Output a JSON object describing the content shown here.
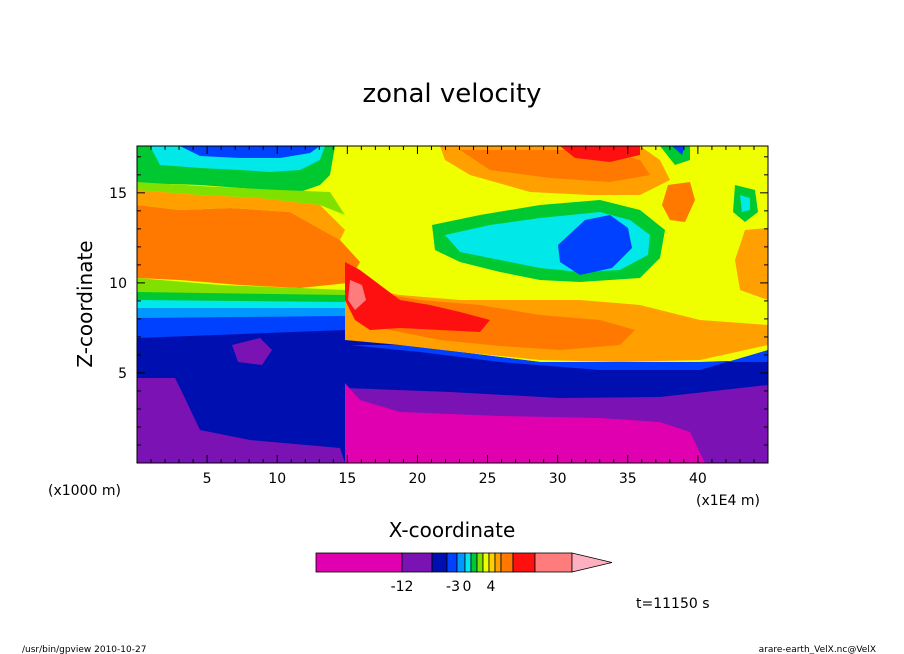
{
  "chart_data": {
    "type": "heatmap",
    "title": "zonal velocity",
    "xlabel": "X-coordinate",
    "ylabel": "Z-coordinate",
    "x_unit_left": "(x1000 m)",
    "x_unit_right": "(x1E4 m)",
    "xlim": [
      0,
      45
    ],
    "ylim": [
      0,
      17.6
    ],
    "x_ticks": [
      5,
      10,
      15,
      20,
      25,
      30,
      35,
      40
    ],
    "y_ticks": [
      5,
      10,
      15
    ],
    "time_label": "t=11150 s",
    "footer_left": "/usr/bin/gpview  2010-10-27",
    "footer_right": "arare-earth_VelX.nc@VelX",
    "colorbar": {
      "colors": [
        "#e000b0",
        "#7a12b4",
        "#0010b0",
        "#0040ff",
        "#0098ff",
        "#00e8e8",
        "#00c830",
        "#80e000",
        "#f0ff00",
        "#ffd000",
        "#ffa000",
        "#ff7800",
        "#ff1010",
        "#ff7c7c",
        "#ffb0c0"
      ],
      "tick_labels": [
        "-12",
        "-3",
        "0",
        "4"
      ]
    },
    "regions": [
      {
        "level": 9,
        "color": "#f0ff00",
        "description": "upper troposphere background"
      },
      {
        "level": 11,
        "color": "#ff7800",
        "description": "mid-level westerly band z~10-14"
      },
      {
        "level": 5,
        "color": "#00e8e8",
        "description": "cyan patch near top-left"
      },
      {
        "level": 5,
        "color": "#00e8e8",
        "description": "cyan pocket x~22-30, z~11-13"
      },
      {
        "level": 3,
        "color": "#0040ff",
        "description": "blue pocket x~30-35, z~10-13"
      },
      {
        "level": 12,
        "color": "#ff1010",
        "description": "red jet core x~15-25, z~7-10"
      },
      {
        "level": 13,
        "color": "#ff7c7c",
        "description": "pink core x~15-16, z~9"
      },
      {
        "level": 2,
        "color": "#0010b0",
        "description": "low-level easterly layer z~1-7 west of x=15"
      },
      {
        "level": 1,
        "color": "#7a12b4",
        "description": "surface layer"
      },
      {
        "level": 0,
        "color": "#e000b0",
        "description": "strong easterly z~0-3 east of x=15"
      }
    ]
  }
}
